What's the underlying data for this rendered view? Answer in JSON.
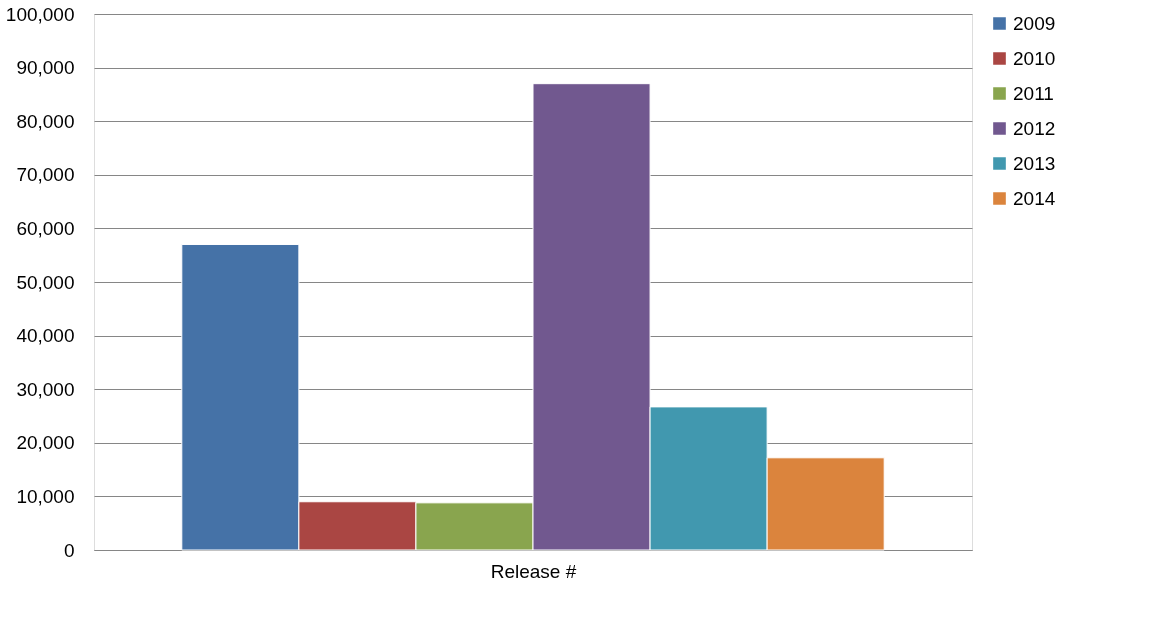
{
  "chart_data": {
    "type": "bar",
    "xlabel": "Release #",
    "categories": [
      null
    ],
    "series": [
      {
        "name": "2009",
        "color": "#4572a7",
        "values": [
          57000
        ]
      },
      {
        "name": "2010",
        "color": "#aa4643",
        "values": [
          9000
        ]
      },
      {
        "name": "2011",
        "color": "#89a54e",
        "values": [
          8800
        ]
      },
      {
        "name": "2012",
        "color": "#71588f",
        "values": [
          87000
        ]
      },
      {
        "name": "2013",
        "color": "#4198af",
        "values": [
          26700
        ]
      },
      {
        "name": "2014",
        "color": "#db843d",
        "values": [
          17200
        ]
      }
    ],
    "ylim": [
      0,
      100000
    ],
    "yticks": [
      0,
      {
        "value": 10000,
        "label": "10,000"
      },
      {
        "value": 20000,
        "label": "20,000"
      },
      {
        "value": 30000,
        "label": "30,000"
      },
      {
        "value": 40000,
        "label": "40,000"
      },
      {
        "value": 50000,
        "label": "50,000"
      },
      {
        "value": 60000,
        "label": "60,000"
      },
      {
        "value": 70000,
        "label": "70,000"
      },
      {
        "value": 80000,
        "label": "80,000"
      },
      {
        "value": 90000,
        "label": "90,000"
      },
      {
        "value": 100000,
        "label": "100,000"
      }
    ],
    "grid": "y",
    "legend": "right",
    "tick_labels": "y"
  }
}
